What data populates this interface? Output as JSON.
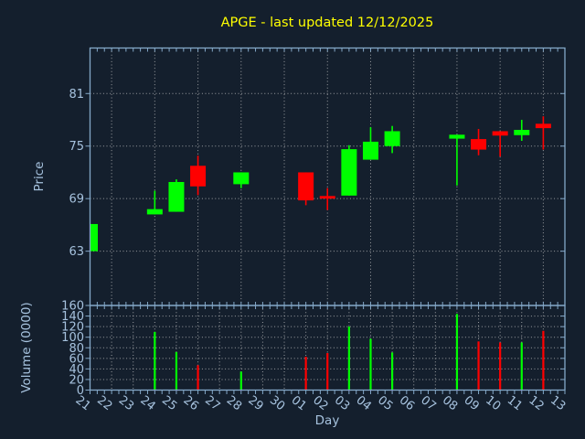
{
  "title": {
    "text": "APGE - last updated 12/12/2025"
  },
  "colors": {
    "background": "#141f2d",
    "axis": "#84a8c8",
    "tick_label": "#a6c2de",
    "grid": "#c9c9c9",
    "up": "#00ff00",
    "down": "#ff0000",
    "title": "#ffff00"
  },
  "chart_data": {
    "type": "candlestick",
    "title": "APGE - last updated 12/12/2025",
    "xlabel": "Day",
    "x_categories": [
      "21",
      "22",
      "23",
      "24",
      "25",
      "26",
      "27",
      "28",
      "29",
      "30",
      "01",
      "02",
      "03",
      "04",
      "05",
      "06",
      "07",
      "08",
      "09",
      "10",
      "11",
      "12",
      "13"
    ],
    "panels": [
      {
        "name": "price",
        "ylabel": "Price",
        "yticks": [
          63,
          69,
          75,
          81
        ],
        "ylim": [
          56.8,
          86.2
        ],
        "grid": "on",
        "x_grid_step_days": 2
      },
      {
        "name": "volume",
        "ylabel": "Volume (0000)",
        "yticks": [
          0,
          20,
          40,
          60,
          80,
          100,
          120,
          140,
          160
        ],
        "ylim": [
          0,
          160
        ],
        "grid": "on",
        "x_grid_step_days": 1
      }
    ],
    "ohlcv": [
      {
        "day": "21",
        "x_index": 0,
        "open": 63.0,
        "high": 66.1,
        "low": 63.0,
        "close": 66.1,
        "direction": "up",
        "volume": null
      },
      {
        "day": "24",
        "x_index": 3,
        "open": 67.2,
        "high": 69.9,
        "low": 67.2,
        "close": 67.8,
        "direction": "up",
        "volume": 110
      },
      {
        "day": "25",
        "x_index": 4,
        "open": 67.5,
        "high": 71.2,
        "low": 67.5,
        "close": 70.9,
        "direction": "up",
        "volume": 72
      },
      {
        "day": "26",
        "x_index": 5,
        "open": 72.75,
        "high": 73.9,
        "low": 69.4,
        "close": 70.4,
        "direction": "down",
        "volume": 47
      },
      {
        "day": "28",
        "x_index": 7,
        "open": 70.65,
        "high": 72.0,
        "low": 70.2,
        "close": 72.0,
        "direction": "up",
        "volume": 35
      },
      {
        "day": "01",
        "x_index": 10,
        "open": 72.0,
        "high": 72.0,
        "low": 68.25,
        "close": 68.8,
        "direction": "down",
        "volume": 63
      },
      {
        "day": "02",
        "x_index": 11,
        "open": 69.3,
        "high": 70.2,
        "low": 67.7,
        "close": 69.0,
        "direction": "down",
        "volume": 70
      },
      {
        "day": "03",
        "x_index": 12,
        "open": 69.35,
        "high": 75.1,
        "low": 69.35,
        "close": 74.65,
        "direction": "up",
        "volume": 120
      },
      {
        "day": "04",
        "x_index": 13,
        "open": 73.45,
        "high": 77.15,
        "low": 73.45,
        "close": 75.5,
        "direction": "up",
        "volume": 97
      },
      {
        "day": "05",
        "x_index": 14,
        "open": 75.0,
        "high": 77.3,
        "low": 74.2,
        "close": 76.7,
        "direction": "up",
        "volume": 71
      },
      {
        "day": "08",
        "x_index": 17,
        "open": 75.85,
        "high": 76.3,
        "low": 70.5,
        "close": 76.3,
        "direction": "up",
        "volume": 144
      },
      {
        "day": "09",
        "x_index": 18,
        "open": 75.8,
        "high": 76.95,
        "low": 73.95,
        "close": 74.6,
        "direction": "down",
        "volume": 92
      },
      {
        "day": "10",
        "x_index": 19,
        "open": 76.7,
        "high": 76.7,
        "low": 73.8,
        "close": 76.2,
        "direction": "down",
        "volume": 90
      },
      {
        "day": "11",
        "x_index": 20,
        "open": 76.25,
        "high": 78.0,
        "low": 75.6,
        "close": 76.85,
        "direction": "up",
        "volume": 90
      },
      {
        "day": "12",
        "x_index": 21,
        "open": 77.55,
        "high": 78.4,
        "low": 74.6,
        "close": 77.05,
        "direction": "down",
        "volume": 112
      }
    ]
  }
}
